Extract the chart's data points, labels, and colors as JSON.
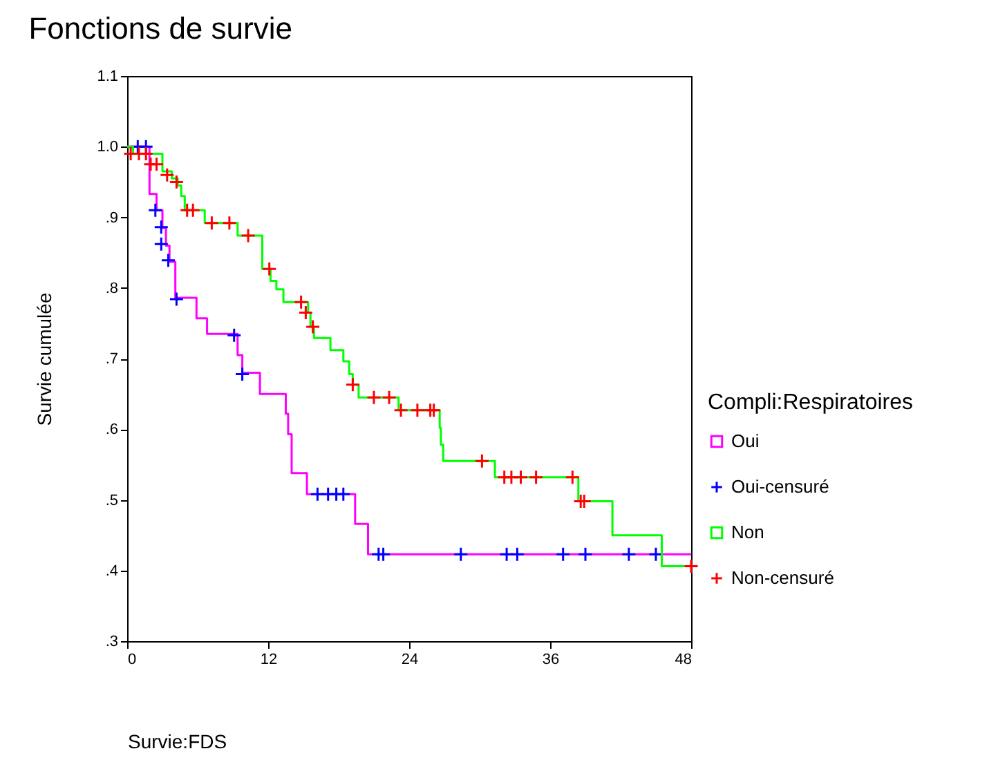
{
  "chart_data": {
    "type": "step",
    "title": "Fonctions de survie",
    "xlabel": "Survie:FDS",
    "ylabel": "Survie cumulée",
    "legend_title": "Compli:Respiratoires",
    "legend": "right",
    "xlim": [
      0,
      48
    ],
    "xticks": [
      0,
      12,
      24,
      36,
      48
    ],
    "ylim": [
      0.3,
      1.1
    ],
    "yticks": [
      {
        "value": 0.3,
        "label": ".3"
      },
      {
        "value": 0.4,
        "label": ".4"
      },
      {
        "value": 0.5,
        "label": ".5"
      },
      {
        "value": 0.6,
        "label": ".6"
      },
      {
        "value": 0.7,
        "label": ".7"
      },
      {
        "value": 0.8,
        "label": ".8"
      },
      {
        "value": 0.9,
        "label": ".9"
      },
      {
        "value": 1.0,
        "label": "1.0"
      },
      1.1
    ],
    "series": [
      {
        "name": "Oui",
        "color": "#ff00ff",
        "x": [
          0,
          1.9,
          2.5,
          3.0,
          3.3,
          3.6,
          4.1,
          5.9,
          6.8,
          9.4,
          9.8,
          11.3,
          13.5,
          13.7,
          14.0,
          15.3,
          19.4,
          20.5,
          48
        ],
        "values": [
          1.0,
          0.933,
          0.91,
          0.885,
          0.86,
          0.837,
          0.786,
          0.757,
          0.735,
          0.705,
          0.68,
          0.65,
          0.622,
          0.593,
          0.538,
          0.508,
          0.466,
          0.423,
          0.423
        ]
      },
      {
        "name": "Oui-censuré",
        "type": "scatter",
        "marker": "cross",
        "color": "#0000ff",
        "x": [
          0.9,
          1.6,
          2.4,
          2.9,
          2.9,
          3.5,
          4.2,
          9.1,
          9.8,
          16.2,
          17.1,
          17.8,
          18.4,
          21.4,
          21.8,
          28.4,
          32.3,
          33.2,
          37.1,
          39.0,
          42.7,
          45.0
        ],
        "values": [
          1.0,
          1.0,
          0.91,
          0.886,
          0.862,
          0.839,
          0.784,
          0.733,
          0.678,
          0.508,
          0.508,
          0.508,
          0.508,
          0.423,
          0.423,
          0.423,
          0.423,
          0.423,
          0.423,
          0.423,
          0.423,
          0.423
        ]
      },
      {
        "name": "Non",
        "color": "#00ff00",
        "x": [
          0,
          0.5,
          3.0,
          3.8,
          4.3,
          4.6,
          4.9,
          6.6,
          9.4,
          11.5,
          12.2,
          12.7,
          13.3,
          15.4,
          15.6,
          15.9,
          17.3,
          18.4,
          18.9,
          19.2,
          19.7,
          23.1,
          26.6,
          26.7,
          26.9,
          31.3,
          38.4,
          41.3,
          45.5,
          48
        ],
        "values": [
          1.0,
          0.99,
          0.965,
          0.955,
          0.945,
          0.93,
          0.91,
          0.892,
          0.874,
          0.827,
          0.81,
          0.798,
          0.78,
          0.765,
          0.745,
          0.729,
          0.712,
          0.696,
          0.678,
          0.663,
          0.645,
          0.627,
          0.602,
          0.578,
          0.555,
          0.532,
          0.498,
          0.45,
          0.406,
          0.406
        ]
      },
      {
        "name": "Non-censuré",
        "type": "scatter",
        "marker": "cross",
        "color": "#ff0000",
        "x": [
          0.3,
          1.0,
          1.6,
          2.0,
          2.5,
          3.4,
          4.2,
          5.1,
          5.6,
          7.2,
          8.7,
          10.3,
          12.1,
          14.8,
          15.2,
          15.8,
          19.2,
          21.0,
          22.3,
          23.3,
          24.7,
          25.8,
          26.1,
          30.2,
          32.1,
          32.7,
          33.5,
          34.8,
          37.9,
          38.6,
          38.9,
          48
        ],
        "values": [
          0.99,
          0.99,
          0.99,
          0.975,
          0.975,
          0.96,
          0.95,
          0.91,
          0.91,
          0.892,
          0.892,
          0.874,
          0.827,
          0.78,
          0.765,
          0.745,
          0.663,
          0.645,
          0.645,
          0.627,
          0.627,
          0.627,
          0.627,
          0.555,
          0.532,
          0.532,
          0.532,
          0.532,
          0.532,
          0.498,
          0.498,
          0.406
        ]
      }
    ]
  }
}
